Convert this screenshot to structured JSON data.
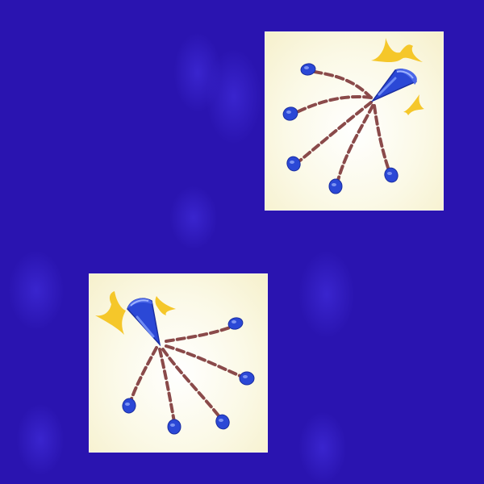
{
  "colors": {
    "background": "#2a14b0",
    "card": "#fbf9e6",
    "piece": "#2b48d6",
    "piece_highlight": "#6f8cf5",
    "path": "#8a4a4a",
    "spark": "#f5c72a"
  },
  "icons": {
    "card_a": "cone-piece-icon",
    "card_b": "cone-piece-icon",
    "spark": "sparkle-icon",
    "endpoint": "capsule-token-icon"
  }
}
